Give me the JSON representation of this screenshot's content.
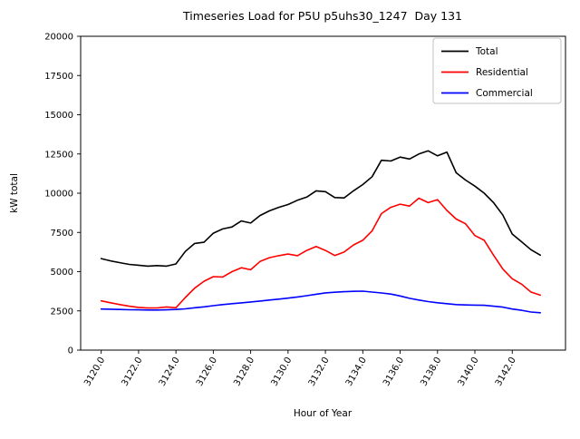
{
  "chart_data": {
    "type": "line",
    "title": "Timeseries Load for P5U p5uhs30_1247  Day 131",
    "xlabel": "Hour of Year",
    "ylabel": "kW total",
    "xlim": [
      3118.9,
      3144.85
    ],
    "ylim": [
      0,
      20000
    ],
    "grid": false,
    "legend_position": "upper right",
    "xtick_values": [
      3120,
      3122,
      3124,
      3126,
      3128,
      3130,
      3132,
      3134,
      3136,
      3138,
      3140,
      3142
    ],
    "xtick_labels": [
      "3120.0",
      "3122.0",
      "3124.0",
      "3126.0",
      "3128.0",
      "3130.0",
      "3132.0",
      "3134.0",
      "3136.0",
      "3138.0",
      "3140.0",
      "3142.0"
    ],
    "ytick_values": [
      0,
      2500,
      5000,
      7500,
      10000,
      12500,
      15000,
      17500,
      20000
    ],
    "ytick_labels": [
      "0",
      "2500",
      "5000",
      "7500",
      "10000",
      "12500",
      "15000",
      "17500",
      "20000"
    ],
    "x": [
      3120.0,
      3120.5,
      3121.0,
      3121.5,
      3122.0,
      3122.5,
      3123.0,
      3123.5,
      3124.0,
      3124.5,
      3125.0,
      3125.5,
      3126.0,
      3126.5,
      3127.0,
      3127.5,
      3128.0,
      3128.5,
      3129.0,
      3129.5,
      3130.0,
      3130.5,
      3131.0,
      3131.5,
      3132.0,
      3132.5,
      3133.0,
      3133.5,
      3134.0,
      3134.5,
      3135.0,
      3135.5,
      3136.0,
      3136.5,
      3137.0,
      3137.5,
      3138.0,
      3138.5,
      3139.0,
      3139.5,
      3140.0,
      3140.5,
      3141.0,
      3141.5,
      3142.0,
      3142.5,
      3143.0,
      3143.5
    ],
    "series": [
      {
        "name": "Total",
        "color": "#000000",
        "values": [
          5830,
          5690,
          5570,
          5460,
          5410,
          5350,
          5390,
          5350,
          5490,
          6290,
          6800,
          6870,
          7450,
          7720,
          7850,
          8230,
          8100,
          8580,
          8870,
          9100,
          9280,
          9550,
          9750,
          10150,
          10100,
          9720,
          9700,
          10150,
          10550,
          11050,
          12100,
          12050,
          12300,
          12180,
          12500,
          12700,
          12380,
          12620,
          11300,
          10840,
          10450,
          10000,
          9400,
          8600,
          7400,
          6900,
          6400,
          6050
        ]
      },
      {
        "name": "Residential",
        "color": "#ff0000",
        "values": [
          3140,
          3020,
          2900,
          2800,
          2720,
          2680,
          2690,
          2750,
          2700,
          3350,
          3950,
          4390,
          4680,
          4660,
          5000,
          5250,
          5120,
          5650,
          5890,
          6020,
          6120,
          6020,
          6350,
          6600,
          6350,
          6030,
          6250,
          6700,
          7000,
          7600,
          8700,
          9100,
          9300,
          9180,
          9680,
          9400,
          9590,
          8900,
          8350,
          8050,
          7300,
          7000,
          6050,
          5160,
          4550,
          4200,
          3700,
          3500
        ]
      },
      {
        "name": "Commercial",
        "color": "#0000ff",
        "values": [
          2620,
          2605,
          2590,
          2575,
          2565,
          2555,
          2555,
          2565,
          2590,
          2630,
          2700,
          2760,
          2830,
          2900,
          2960,
          3010,
          3070,
          3130,
          3190,
          3250,
          3310,
          3390,
          3470,
          3560,
          3650,
          3690,
          3720,
          3745,
          3755,
          3700,
          3640,
          3570,
          3450,
          3300,
          3190,
          3090,
          3020,
          2960,
          2900,
          2880,
          2865,
          2855,
          2800,
          2740,
          2620,
          2540,
          2430,
          2380
        ]
      }
    ]
  }
}
